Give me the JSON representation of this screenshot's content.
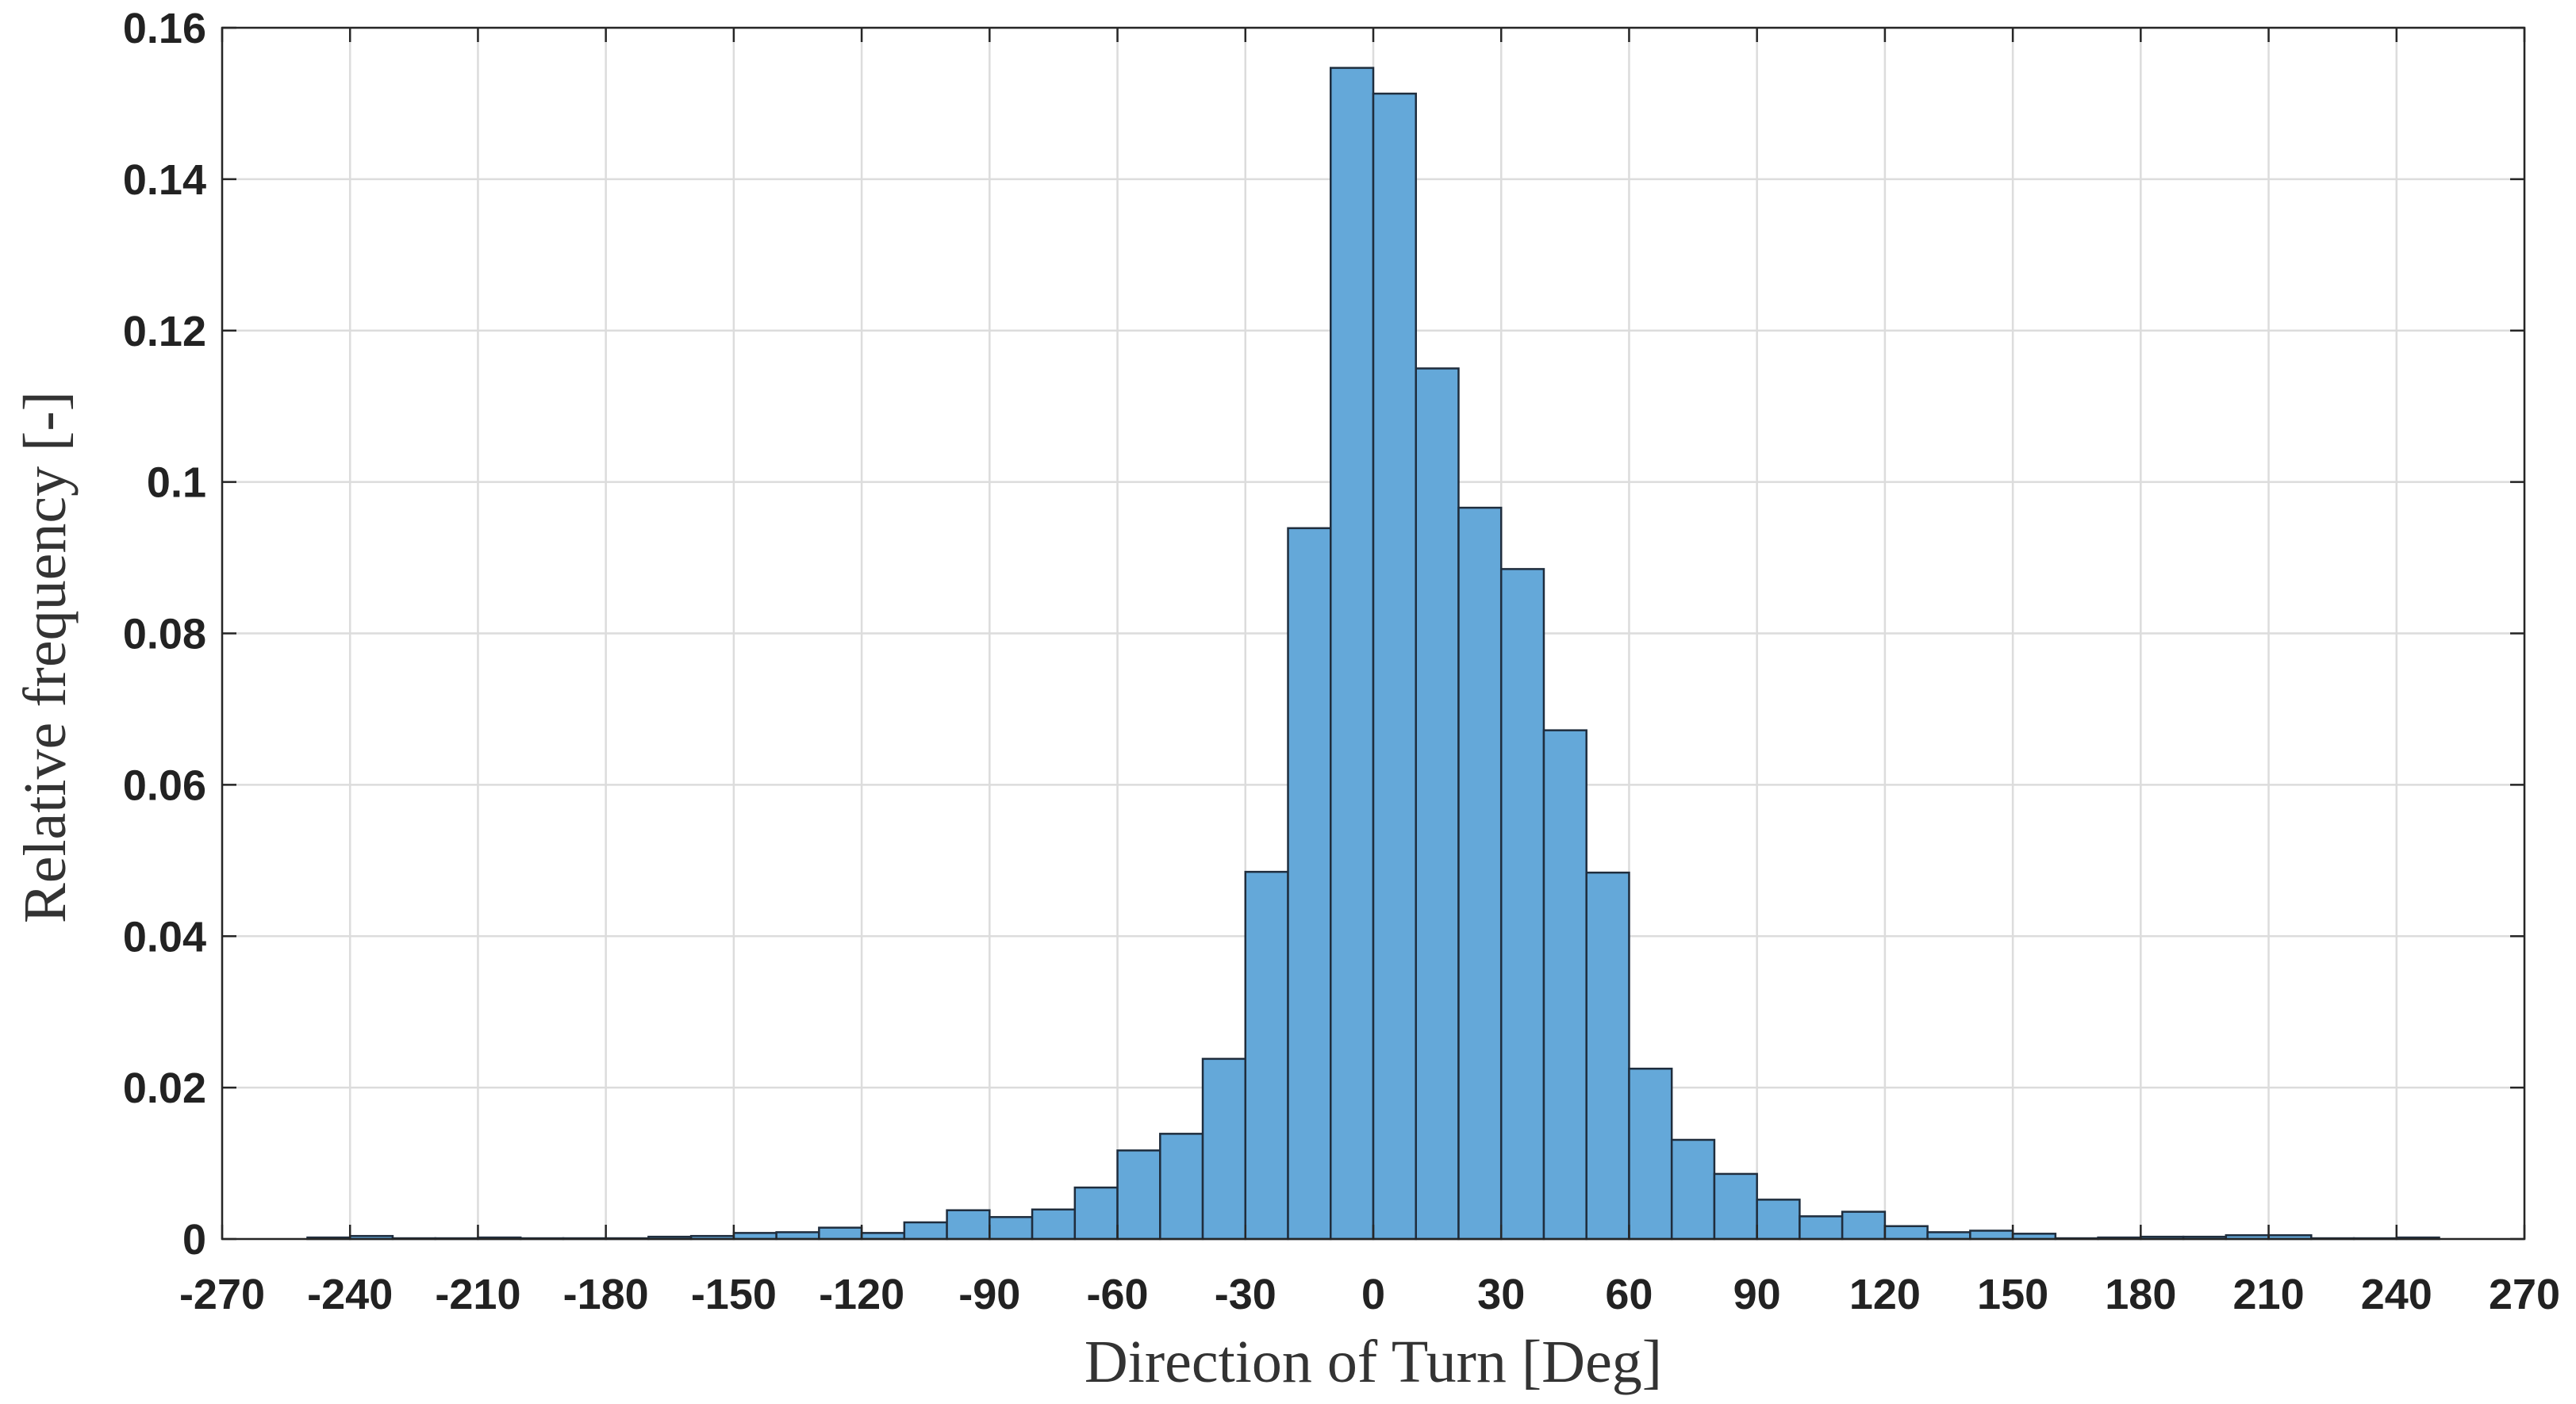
{
  "chart_data": {
    "type": "bar",
    "title": "",
    "xlabel": "Direction of Turn [Deg]",
    "ylabel": "Relative frequency [-]",
    "xlim": [
      -270,
      270
    ],
    "ylim": [
      0,
      0.16
    ],
    "xticks": [
      -270,
      -240,
      -210,
      -180,
      -150,
      -120,
      -90,
      -60,
      -30,
      0,
      30,
      60,
      90,
      120,
      150,
      180,
      210,
      240,
      270
    ],
    "yticks": [
      0,
      0.02,
      0.04,
      0.06,
      0.08,
      0.1,
      0.12,
      0.14,
      0.16
    ],
    "ytick_labels": [
      "0",
      "0.02",
      "0.04",
      "0.06",
      "0.08",
      "0.1",
      "0.12",
      "0.14",
      "0.16"
    ],
    "grid": true,
    "bar_color": "#64a8d9",
    "bin_width": 10,
    "bin_start": -250,
    "values": [
      0.0002,
      0.0004,
      0.0001,
      0.0001,
      0.0002,
      0.0001,
      0.0001,
      0.0001,
      0.0003,
      0.0004,
      0.0008,
      0.0009,
      0.0015,
      0.0008,
      0.0022,
      0.0038,
      0.0029,
      0.0039,
      0.0068,
      0.0117,
      0.0139,
      0.0238,
      0.0485,
      0.0939,
      0.1547,
      0.1513,
      0.115,
      0.0966,
      0.0885,
      0.0672,
      0.0484,
      0.0225,
      0.0131,
      0.0086,
      0.0052,
      0.003,
      0.0036,
      0.0017,
      0.0009,
      0.0011,
      0.0007,
      0.0001,
      0.0002,
      0.0003,
      0.0003,
      0.0005,
      0.0005,
      0.0001,
      0.0001,
      0.0002
    ]
  }
}
